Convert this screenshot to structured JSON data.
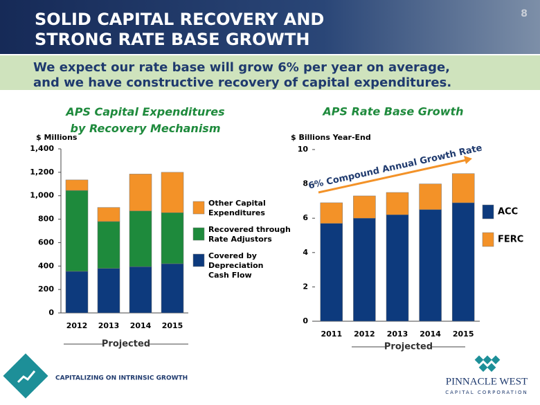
{
  "header": {
    "title": [
      "SOLID CAPITAL RECOVERY AND",
      "STRONG RATE BASE GROWTH"
    ],
    "page_number": "8",
    "subtitle": [
      "We expect our rate base will grow 6% per year on average,",
      "and we have constructive recovery of capital expenditures."
    ]
  },
  "chart_data": [
    {
      "type": "bar",
      "stacked": true,
      "title": "APS Capital Expenditures\nby Recovery Mechanism",
      "y_label": "$ Millions",
      "categories": [
        "2012",
        "2013",
        "2014",
        "2015"
      ],
      "series": [
        {
          "name": "Covered by\nDepreciation\nCash Flow",
          "color": "#0d3a7d",
          "values": [
            355,
            380,
            395,
            420
          ]
        },
        {
          "name": "Recovered through\nRate Adjustors",
          "color": "#1e8a3c",
          "values": [
            690,
            400,
            475,
            435
          ]
        },
        {
          "name": "Other Capital\nExpenditures",
          "color": "#f39228",
          "values": [
            90,
            120,
            315,
            345
          ]
        }
      ],
      "ylim": [
        0,
        1400
      ],
      "yticks": [
        0,
        200,
        400,
        600,
        800,
        {
          "value": 1000,
          "label": "1,000"
        },
        {
          "value": 1200,
          "label": "1,200"
        },
        {
          "value": 1400,
          "label": "1,400"
        }
      ],
      "projected_label": "Projected"
    },
    {
      "type": "bar",
      "stacked": true,
      "title": "APS Rate Base Growth",
      "y_label": "$ Billions Year-End",
      "categories": [
        "2011",
        "2012",
        "2013",
        "2014",
        "2015"
      ],
      "series": [
        {
          "name": "ACC",
          "color": "#0d3a7d",
          "values": [
            5.7,
            6.0,
            6.2,
            6.5,
            6.9
          ]
        },
        {
          "name": "FERC",
          "color": "#f39228",
          "values": [
            1.2,
            1.3,
            1.3,
            1.5,
            1.7
          ]
        }
      ],
      "ylim": [
        0,
        10
      ],
      "yticks": [
        0,
        2,
        4,
        6,
        8,
        10
      ],
      "projected_label": "Projected",
      "growth_label": "6% Compound Annual Growth Rate"
    }
  ],
  "footer": {
    "tagline": "CAPITALIZING ON INTRINSIC GROWTH",
    "logo": [
      "PINNACLE WEST",
      "CAPITAL CORPORATION"
    ]
  }
}
